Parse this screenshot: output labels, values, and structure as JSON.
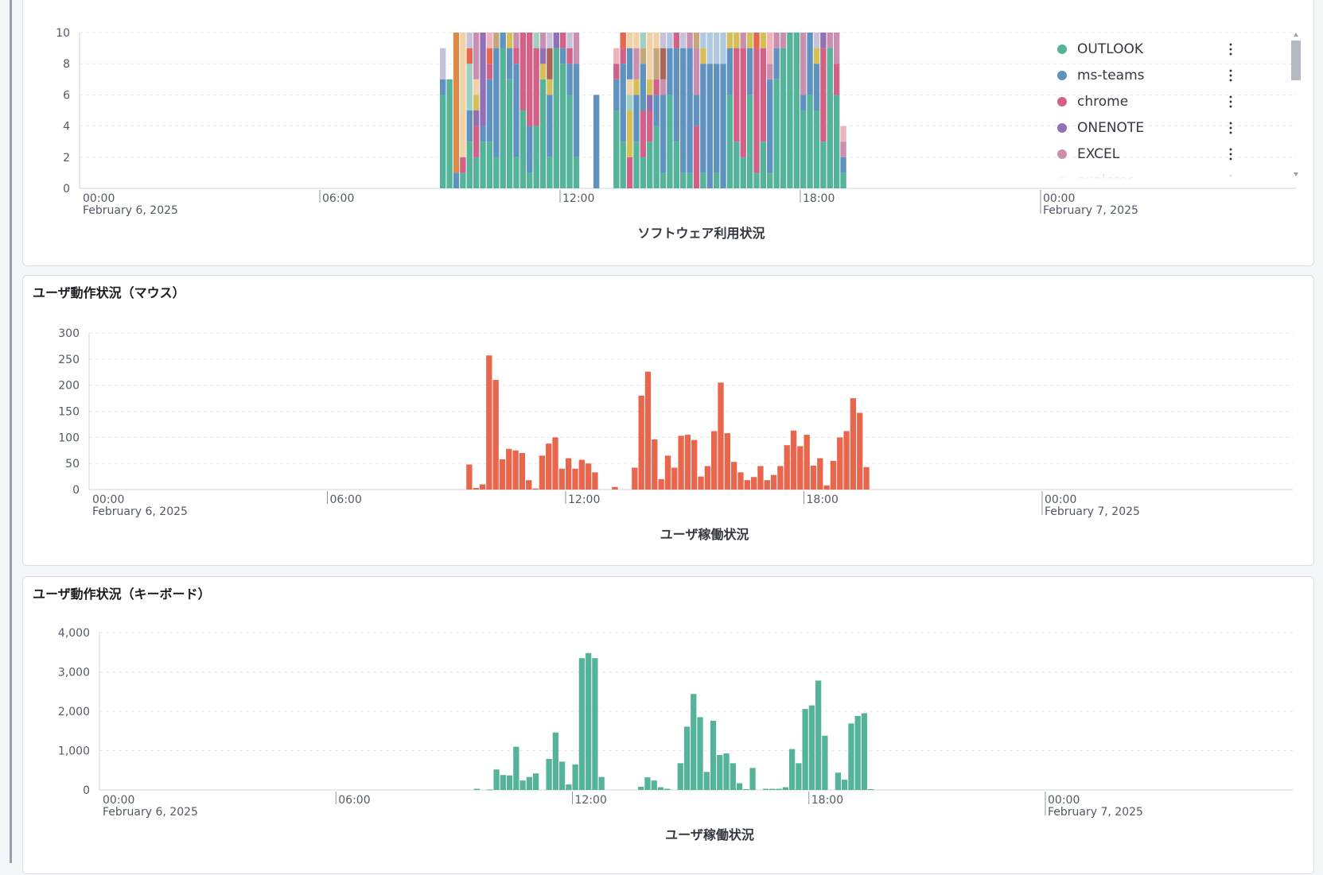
{
  "colors": {
    "outlook": "#54b399",
    "msteams": "#6092c0",
    "chrome": "#d36086",
    "onenote": "#9170b8",
    "excel": "#ca8eae",
    "explorer": "#d6bf57",
    "orange": "#e7664c",
    "amber": "#da8b45",
    "peach": "#f1d2a7",
    "mint": "#9fd1c3",
    "lightblue": "#b0c9e0",
    "lavender": "#c8c1da",
    "tan": "#c5a77c",
    "brown": "#aa6556",
    "pink": "#eeb4bb",
    "mouse_bar": "#e7664c",
    "keyboard_bar": "#54b399"
  },
  "software_panel": {
    "legend": [
      {
        "label": "OUTLOOK",
        "color": "#54b399"
      },
      {
        "label": "ms-teams",
        "color": "#6092c0"
      },
      {
        "label": "chrome",
        "color": "#d36086"
      },
      {
        "label": "ONENOTE",
        "color": "#9170b8"
      },
      {
        "label": "EXCEL",
        "color": "#ca8eae"
      },
      {
        "label": "explorer",
        "color": "#d6bf57"
      }
    ]
  },
  "mouse_panel": {
    "title": "ユーザ動作状況（マウス）"
  },
  "keyboard_panel": {
    "title": "ユーザ動作状況（キーボード）"
  },
  "chart_data": [
    {
      "type": "bar",
      "stacked": true,
      "xlabel": "ソフトウェア利用状況",
      "ylim": [
        0,
        10
      ],
      "yticks": [
        "0",
        "2",
        "4",
        "6",
        "8",
        "10"
      ],
      "xticks": [
        {
          "t": 0,
          "label": "00:00",
          "sub": "February 6, 2025"
        },
        {
          "t": 6,
          "label": "06:00"
        },
        {
          "t": 12,
          "label": "12:00"
        },
        {
          "t": 18,
          "label": "18:00"
        },
        {
          "t": 24,
          "label": "00:00",
          "sub": "February 7, 2025"
        }
      ],
      "x_start_hour": 9,
      "bin_hours": 0.16667,
      "bars": [
        [
          [
            "outlook",
            6
          ],
          [
            "msteams",
            1
          ],
          [
            "lavender",
            2
          ]
        ],
        [
          [
            "outlook",
            7
          ]
        ],
        [
          [
            "msteams",
            1
          ],
          [
            "amber",
            9
          ]
        ],
        [
          [
            "outlook",
            1
          ],
          [
            "chrome",
            1
          ],
          [
            "peach",
            7
          ],
          [
            "peach",
            1
          ]
        ],
        [
          [
            "outlook",
            3
          ],
          [
            "msteams",
            2
          ],
          [
            "mint",
            3
          ],
          [
            "orange",
            1
          ],
          [
            "lavender",
            1
          ]
        ],
        [
          [
            "outlook",
            2
          ],
          [
            "chrome",
            2
          ],
          [
            "onenote",
            1
          ],
          [
            "explorer",
            1
          ],
          [
            "peach",
            1
          ],
          [
            "excel",
            3
          ]
        ],
        [
          [
            "outlook",
            3
          ],
          [
            "msteams",
            1
          ],
          [
            "onenote",
            6
          ]
        ],
        [
          [
            "outlook",
            3
          ],
          [
            "msteams",
            4
          ],
          [
            "chrome",
            1
          ],
          [
            "orange",
            1
          ],
          [
            "pink",
            1
          ]
        ],
        [
          [
            "outlook",
            2
          ],
          [
            "msteams",
            7
          ],
          [
            "tan",
            1
          ]
        ],
        [
          [
            "outlook",
            9
          ],
          [
            "msteams",
            1
          ]
        ],
        [
          [
            "outlook",
            7
          ],
          [
            "msteams",
            2
          ],
          [
            "explorer",
            1
          ]
        ],
        [
          [
            "outlook",
            2
          ],
          [
            "msteams",
            6
          ],
          [
            "chrome",
            1
          ],
          [
            "excel",
            1
          ]
        ],
        [
          [
            "outlook",
            5
          ],
          [
            "chrome",
            5
          ]
        ],
        [
          [
            "outlook",
            1
          ],
          [
            "msteams",
            3
          ],
          [
            "chrome",
            6
          ]
        ],
        [
          [
            "outlook",
            4
          ],
          [
            "chrome",
            5
          ],
          [
            "mint",
            1
          ]
        ],
        [
          [
            "outlook",
            7
          ],
          [
            "explorer",
            1
          ],
          [
            "onenote",
            1
          ],
          [
            "excel",
            1
          ]
        ],
        [
          [
            "outlook",
            2
          ],
          [
            "msteams",
            4
          ],
          [
            "explorer",
            1
          ],
          [
            "brown",
            2
          ],
          [
            "lavender",
            1
          ]
        ],
        [
          [
            "outlook",
            9
          ],
          [
            "onenote",
            1
          ]
        ],
        [
          [
            "outlook",
            8
          ],
          [
            "msteams",
            1
          ],
          [
            "chrome",
            1
          ]
        ],
        [
          [
            "outlook",
            6
          ],
          [
            "msteams",
            2
          ],
          [
            "chrome",
            1
          ],
          [
            "lavender",
            1
          ]
        ],
        [
          [
            "outlook",
            2
          ],
          [
            "msteams",
            6
          ],
          [
            "excel",
            2
          ]
        ],
        [],
        [],
        [
          [
            "msteams",
            6
          ]
        ],
        [],
        [],
        [
          [
            "outlook",
            5
          ],
          [
            "msteams",
            2
          ],
          [
            "chrome",
            1
          ],
          [
            "pink",
            1
          ]
        ],
        [
          [
            "outlook",
            3
          ],
          [
            "msteams",
            5
          ],
          [
            "chrome",
            1
          ],
          [
            "orange",
            1
          ]
        ],
        [
          [
            "chrome",
            2
          ],
          [
            "explorer",
            3
          ],
          [
            "mint",
            1
          ],
          [
            "peach",
            1
          ],
          [
            "msteams",
            2
          ],
          [
            "peach",
            1
          ]
        ],
        [
          [
            "outlook",
            3
          ],
          [
            "msteams",
            3
          ],
          [
            "explorer",
            1
          ],
          [
            "excel",
            2
          ],
          [
            "peach",
            1
          ]
        ],
        [
          [
            "outlook",
            2
          ],
          [
            "chrome",
            3
          ],
          [
            "msteams",
            3
          ],
          [
            "tan",
            1
          ],
          [
            "mint",
            1
          ]
        ],
        [
          [
            "outlook",
            3
          ],
          [
            "chrome",
            2
          ],
          [
            "onenote",
            1
          ],
          [
            "explorer",
            1
          ],
          [
            "peach",
            3
          ]
        ],
        [
          [
            "outlook",
            4
          ],
          [
            "msteams",
            2
          ],
          [
            "chrome",
            1
          ],
          [
            "tan",
            2
          ],
          [
            "peach",
            1
          ]
        ],
        [
          [
            "outlook",
            1
          ],
          [
            "msteams",
            5
          ],
          [
            "excel",
            1
          ],
          [
            "brown",
            2
          ],
          [
            "lavender",
            1
          ]
        ],
        [
          [
            "outlook",
            6
          ],
          [
            "msteams",
            3
          ],
          [
            "lightblue",
            1
          ]
        ],
        [
          [
            "outlook",
            3
          ],
          [
            "msteams",
            6
          ],
          [
            "chrome",
            1
          ]
        ],
        [
          [
            "outlook",
            1
          ],
          [
            "msteams",
            8
          ],
          [
            "lavender",
            1
          ]
        ],
        [
          [
            "outlook",
            1
          ],
          [
            "msteams",
            8
          ],
          [
            "excel",
            1
          ]
        ],
        [
          [
            "chrome",
            4
          ],
          [
            "msteams",
            2
          ],
          [
            "excel",
            3
          ],
          [
            "tan",
            1
          ]
        ],
        [
          [
            "outlook",
            1
          ],
          [
            "msteams",
            7
          ],
          [
            "explorer",
            1
          ],
          [
            "lightblue",
            1
          ]
        ],
        [
          [
            "msteams",
            8
          ],
          [
            "lightblue",
            2
          ]
        ],
        [
          [
            "outlook",
            1
          ],
          [
            "msteams",
            7
          ],
          [
            "lightblue",
            2
          ]
        ],
        [
          [
            "msteams",
            8
          ],
          [
            "lightblue",
            2
          ]
        ],
        [
          [
            "outlook",
            6
          ],
          [
            "msteams",
            3
          ],
          [
            "explorer",
            1
          ]
        ],
        [
          [
            "outlook",
            3
          ],
          [
            "chrome",
            6
          ],
          [
            "explorer",
            1
          ]
        ],
        [
          [
            "outlook",
            2
          ],
          [
            "chrome",
            7
          ],
          [
            "excel",
            1
          ]
        ],
        [
          [
            "outlook",
            6
          ],
          [
            "msteams",
            3
          ],
          [
            "explorer",
            1
          ]
        ],
        [
          [
            "outlook",
            1
          ],
          [
            "chrome",
            8
          ],
          [
            "orange",
            1
          ]
        ],
        [
          [
            "outlook",
            3
          ],
          [
            "chrome",
            6
          ],
          [
            "explorer",
            1
          ]
        ],
        [
          [
            "outlook",
            1
          ],
          [
            "msteams",
            6
          ],
          [
            "excel",
            1
          ],
          [
            "pink",
            2
          ]
        ],
        [
          [
            "outlook",
            7
          ],
          [
            "msteams",
            2
          ],
          [
            "excel",
            1
          ]
        ],
        [
          [
            "outlook",
            9
          ],
          [
            "excel",
            1
          ]
        ],
        [
          [
            "outlook",
            10
          ]
        ],
        [
          [
            "outlook",
            10
          ]
        ],
        [
          [
            "outlook",
            5
          ],
          [
            "msteams",
            1
          ],
          [
            "excel",
            4
          ]
        ],
        [
          [
            "outlook",
            6
          ],
          [
            "msteams",
            4
          ]
        ],
        [
          [
            "outlook",
            5
          ],
          [
            "msteams",
            3
          ],
          [
            "explorer",
            1
          ],
          [
            "lavender",
            1
          ]
        ],
        [
          [
            "outlook",
            3
          ],
          [
            "chrome",
            6
          ],
          [
            "onenote",
            1
          ]
        ],
        [
          [
            "outlook",
            9
          ],
          [
            "excel",
            1
          ]
        ],
        [
          [
            "outlook",
            6
          ],
          [
            "chrome",
            2
          ],
          [
            "excel",
            2
          ]
        ],
        [
          [
            "outlook",
            1
          ],
          [
            "msteams",
            1
          ],
          [
            "excel",
            1
          ],
          [
            "pink",
            1
          ]
        ]
      ]
    },
    {
      "type": "bar",
      "xlabel": "ユーザ稼働状況",
      "ylim": [
        0,
        300
      ],
      "yticks": [
        "0",
        "50",
        "100",
        "150",
        "200",
        "250",
        "300"
      ],
      "xticks": [
        {
          "t": 0,
          "label": "00:00",
          "sub": "February 6, 2025"
        },
        {
          "t": 6,
          "label": "06:00"
        },
        {
          "t": 12,
          "label": "12:00"
        },
        {
          "t": 18,
          "label": "18:00"
        },
        {
          "t": 24,
          "label": "00:00",
          "sub": "February 7, 2025"
        }
      ],
      "x_start_hour": 9.5,
      "bin_hours": 0.16667,
      "values": [
        48,
        3,
        10,
        257,
        210,
        58,
        78,
        75,
        70,
        18,
        2,
        65,
        88,
        100,
        40,
        60,
        40,
        57,
        50,
        33,
        0,
        0,
        5,
        0,
        0,
        42,
        180,
        226,
        96,
        20,
        65,
        42,
        103,
        105,
        95,
        25,
        45,
        112,
        205,
        108,
        53,
        33,
        18,
        24,
        45,
        18,
        28,
        45,
        85,
        113,
        83,
        105,
        46,
        60,
        8,
        55,
        100,
        112,
        175,
        147,
        43
      ]
    },
    {
      "type": "bar",
      "xlabel": "ユーザ稼働状況",
      "ylim": [
        0,
        4000
      ],
      "yticks": [
        "0",
        "1,000",
        "2,000",
        "3,000",
        "4,000"
      ],
      "xticks": [
        {
          "t": 0,
          "label": "00:00",
          "sub": "February 6, 2025"
        },
        {
          "t": 6,
          "label": "06:00"
        },
        {
          "t": 12,
          "label": "12:00"
        },
        {
          "t": 18,
          "label": "18:00"
        },
        {
          "t": 24,
          "label": "00:00",
          "sub": "February 7, 2025"
        }
      ],
      "x_start_hour": 9.5,
      "bin_hours": 0.16667,
      "values": [
        30,
        0,
        10,
        520,
        380,
        370,
        1100,
        240,
        330,
        420,
        0,
        790,
        1460,
        720,
        140,
        650,
        3350,
        3480,
        3350,
        330,
        0,
        0,
        0,
        0,
        0,
        80,
        320,
        240,
        70,
        30,
        0,
        680,
        1610,
        2440,
        1850,
        460,
        1760,
        890,
        930,
        680,
        170,
        20,
        560,
        0,
        30,
        30,
        30,
        70,
        1040,
        680,
        2060,
        2150,
        2780,
        1380,
        0,
        440,
        260,
        1690,
        1880,
        1950,
        20
      ]
    }
  ]
}
